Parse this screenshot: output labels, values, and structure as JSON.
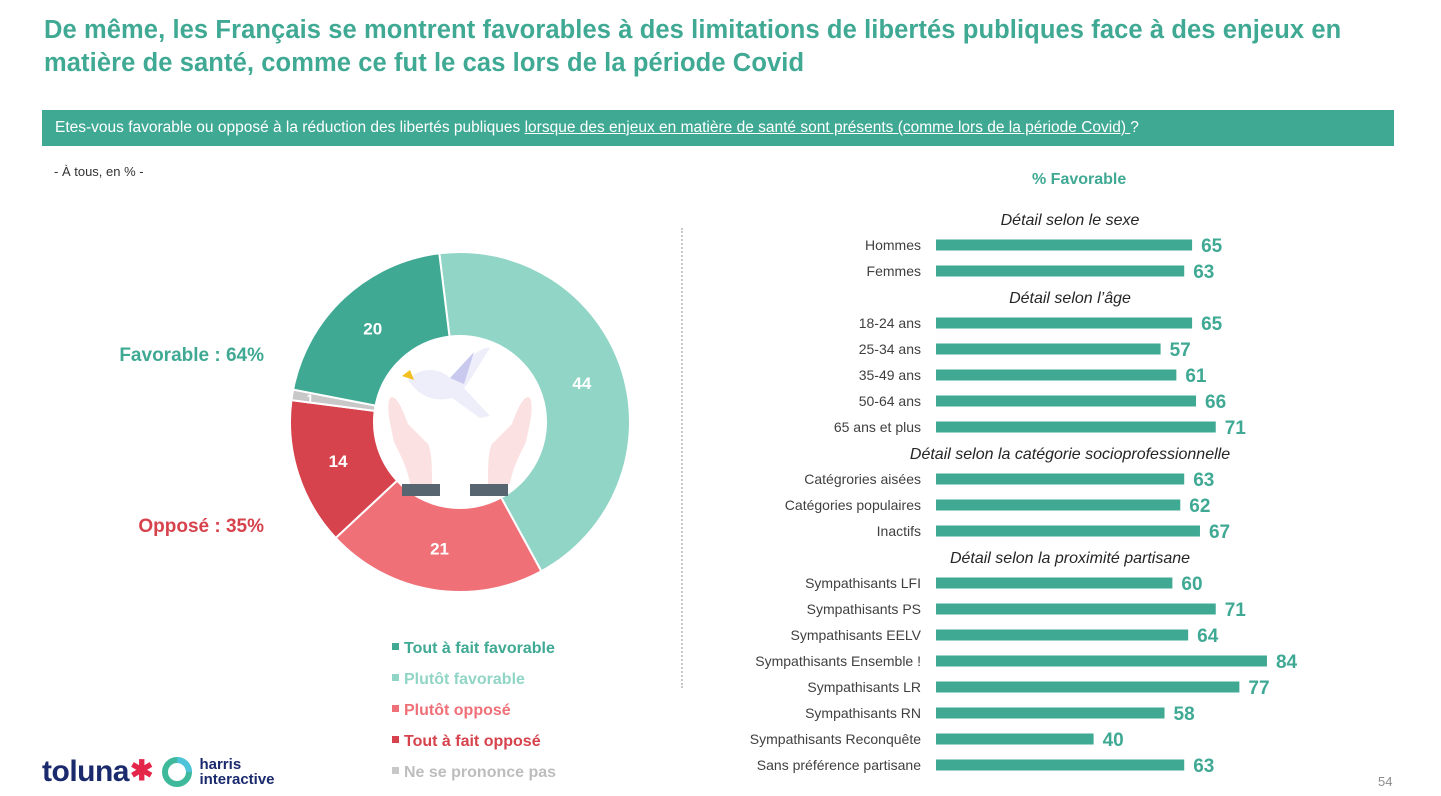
{
  "title": "De même, les Français se montrent favorables à des limitations de libertés publiques face à des enjeux en matière de santé, comme ce fut le cas lors de la période Covid",
  "question": {
    "prefix": "Etes-vous favorable ou opposé à la réduction des libertés publiques ",
    "underlined": "lorsque des enjeux en matière de santé sont présents (comme lors de la période Covid) ",
    "suffix": "?"
  },
  "base_note": "- À tous, en % -",
  "summary": {
    "favorable": "Favorable : 64%",
    "oppose": "Opposé : 35%"
  },
  "colors": {
    "accent": "#3fa994",
    "tout_a_fait_favorable": "#3fa994",
    "plutot_favorable": "#91d5c6",
    "plutot_oppose": "#f07078",
    "tout_a_fait_oppose": "#d6434d",
    "nsp": "#c8c8c8",
    "text_dark": "#404040"
  },
  "center_icon": "dove-hands-icon",
  "logos": {
    "toluna": "toluna",
    "toluna_star": "✱",
    "harris_line1": "harris",
    "harris_line2": "interactive"
  },
  "page_number": "54",
  "chart_data": [
    {
      "type": "pie",
      "variant": "donut",
      "title": "",
      "start": "top, clockwise",
      "slices": [
        {
          "label": "Plutôt favorable",
          "value": 44,
          "color": "#91d5c6"
        },
        {
          "label": "Plutôt opposé",
          "value": 21,
          "color": "#f07078"
        },
        {
          "label": "Tout à fait opposé",
          "value": 14,
          "color": "#d6434d"
        },
        {
          "label": "Ne se prononce pas",
          "value": 1,
          "color": "#c8c8c8"
        },
        {
          "label": "Tout à fait favorable",
          "value": 20,
          "color": "#3fa994"
        }
      ],
      "legend": [
        {
          "label": "Tout à fait favorable",
          "color": "#3fa994"
        },
        {
          "label": "Plutôt favorable",
          "color": "#91d5c6"
        },
        {
          "label": "Plutôt opposé",
          "color": "#f07078"
        },
        {
          "label": "Tout à fait opposé",
          "color": "#d6434d"
        },
        {
          "label": "Ne se prononce pas",
          "color": "#c8c8c8"
        }
      ],
      "legend_position": "bottom"
    },
    {
      "type": "bar",
      "orientation": "horizontal",
      "title": "% Favorable",
      "xlim": [
        0,
        100
      ],
      "grid": false,
      "groups": [
        {
          "heading": "Détail selon le sexe",
          "items": [
            {
              "label": "Hommes",
              "value": 65
            },
            {
              "label": "Femmes",
              "value": 63
            }
          ]
        },
        {
          "heading": "Détail selon l’âge",
          "items": [
            {
              "label": "18-24 ans",
              "value": 65
            },
            {
              "label": "25-34 ans",
              "value": 57
            },
            {
              "label": "35-49 ans",
              "value": 61
            },
            {
              "label": "50-64 ans",
              "value": 66
            },
            {
              "label": "65 ans et plus",
              "value": 71
            }
          ]
        },
        {
          "heading": "Détail selon la catégorie socioprofessionnelle",
          "items": [
            {
              "label": "Catégrories aisées",
              "value": 63
            },
            {
              "label": "Catégories populaires",
              "value": 62
            },
            {
              "label": "Inactifs",
              "value": 67
            }
          ]
        },
        {
          "heading": "Détail selon la proximité partisane",
          "items": [
            {
              "label": "Sympathisants LFI",
              "value": 60
            },
            {
              "label": "Sympathisants PS",
              "value": 71
            },
            {
              "label": "Sympathisants EELV",
              "value": 64
            },
            {
              "label": "Sympathisants Ensemble !",
              "value": 84
            },
            {
              "label": "Sympathisants LR",
              "value": 77
            },
            {
              "label": "Sympathisants RN",
              "value": 58
            },
            {
              "label": "Sympathisants Reconquête",
              "value": 40
            },
            {
              "label": "Sans préférence partisane",
              "value": 63
            }
          ]
        }
      ]
    }
  ]
}
